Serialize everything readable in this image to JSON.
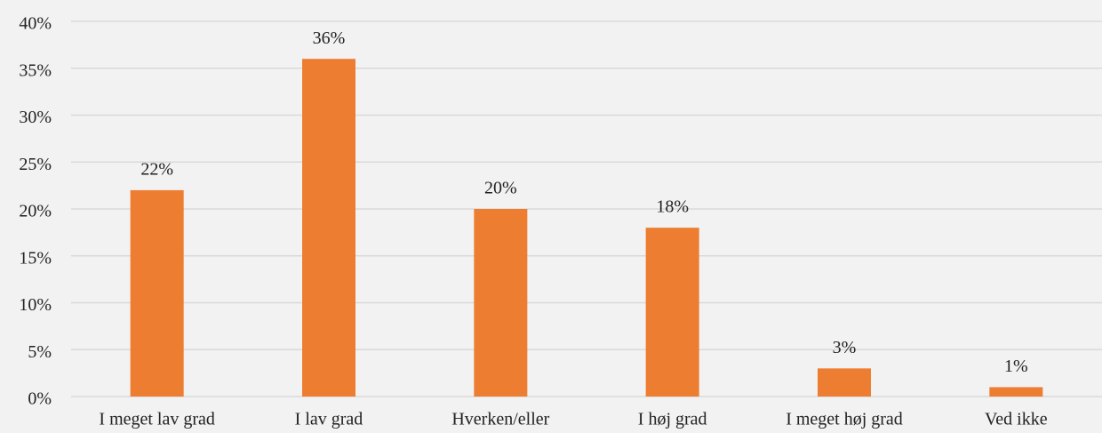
{
  "chart_data": {
    "type": "bar",
    "categories": [
      "I meget lav grad",
      "I lav grad",
      "Hverken/eller",
      "I høj grad",
      "I meget høj grad",
      "Ved ikke"
    ],
    "values": [
      22,
      36,
      20,
      18,
      3,
      1
    ],
    "value_labels": [
      "22%",
      "36%",
      "20%",
      "18%",
      "3%",
      "1%"
    ],
    "color": "#ed7d31",
    "ylim": [
      0,
      40
    ],
    "yticks": [
      {
        "value": 0,
        "label": "0%"
      },
      {
        "value": 5,
        "label": "5%"
      },
      {
        "value": 10,
        "label": "10%"
      },
      {
        "value": 15,
        "label": "15%"
      },
      {
        "value": 20,
        "label": "20%"
      },
      {
        "value": 25,
        "label": "25%"
      },
      {
        "value": 30,
        "label": "30%"
      },
      {
        "value": 35,
        "label": "35%"
      },
      {
        "value": 40,
        "label": "40%"
      }
    ],
    "grid": true
  }
}
